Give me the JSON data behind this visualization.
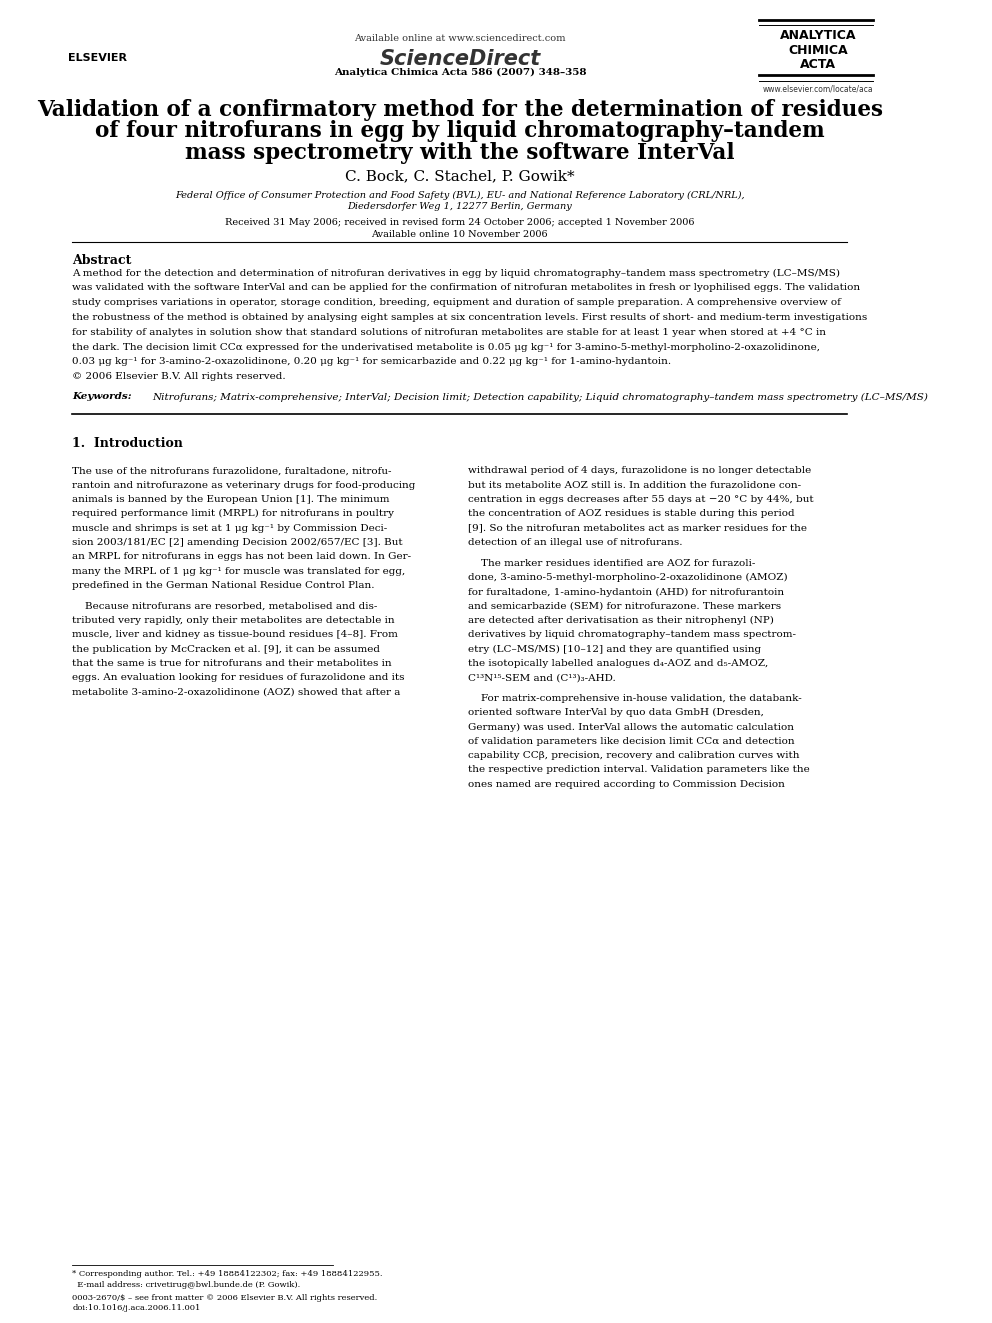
{
  "bg_color": "#ffffff",
  "header": {
    "available_online": "Available online at www.sciencedirect.com",
    "journal_name": "ScienceDirect",
    "journal_sub": "Analytica Chimica Acta 586 (2007) 348–358",
    "publisher_left": "ELSEVIER",
    "journal_right_line1": "ANALYTICA",
    "journal_right_line2": "CHIMICA",
    "journal_right_line3": "ACTA",
    "journal_right_web": "www.elsevier.com/locate/aca"
  },
  "title_line1": "Validation of a confirmatory method for the determination of residues",
  "title_line2": "of four nitrofurans in egg by liquid chromatography–tandem",
  "title_line3": "mass spectrometry with the software InterVal",
  "authors": "C. Bock, C. Stachel, P. Gowik*",
  "affiliation1": "Federal Office of Consumer Protection and Food Safety (BVL), EU- and National Reference Laboratory (CRL/NRL),",
  "affiliation2": "Diedersdorfer Weg 1, 12277 Berlin, Germany",
  "received": "Received 31 May 2006; received in revised form 24 October 2006; accepted 1 November 2006",
  "available": "Available online 10 November 2006",
  "abstract_title": "Abstract",
  "abstract_text": "A method for the detection and determination of nitrofuran derivatives in egg by liquid chromatography–tandem mass spectrometry (LC–MS/MS)\nwas validated with the software InterVal and can be applied for the confirmation of nitrofuran metabolites in fresh or lyophilised eggs. The validation\nstudy comprises variations in operator, storage condition, breeding, equipment and duration of sample preparation. A comprehensive overview of\nthe robustness of the method is obtained by analysing eight samples at six concentration levels. First results of short- and medium-term investigations\nfor stability of analytes in solution show that standard solutions of nitrofuran metabolites are stable for at least 1 year when stored at +4 °C in\nthe dark. The decision limit CCα expressed for the underivatised metabolite is 0.05 μg kg⁻¹ for 3-amino-5-methyl-morpholino-2-oxazolidinone,\n0.03 μg kg⁻¹ for 3-amino-2-oxazolidinone, 0.20 μg kg⁻¹ for semicarbazide and 0.22 μg kg⁻¹ for 1-amino-hydantoin.\n© 2006 Elsevier B.V. All rights reserved.",
  "keywords_label": "Keywords:",
  "keywords_text": "Nitrofurans; Matrix-comprehensive; InterVal; Decision limit; Detection capability; Liquid chromatography–tandem mass spectrometry (LC–MS/MS)",
  "section1_title": "1.  Introduction",
  "section1_col1": "The use of the nitrofurans furazolidone, furaltadone, nitrofu-\nrantoin and nitrofurazone as veterinary drugs for food-producing\nanimals is banned by the European Union [1]. The minimum\nrequired performance limit (MRPL) for nitrofurans in poultry\nmuscle and shrimps is set at 1 μg kg⁻¹ by Commission Deci-\nsion 2003/181/EC [2] amending Decision 2002/657/EC [3]. But\nan MRPL for nitrofurans in eggs has not been laid down. In Ger-\nmany the MRPL of 1 μg kg⁻¹ for muscle was translated for egg,\npredefined in the German National Residue Control Plan.\n\n    Because nitrofurans are resorbed, metabolised and dis-\ntributed very rapidly, only their metabolites are detectable in\nmuscle, liver and kidney as tissue-bound residues [4–8]. From\nthe publication by McCracken et al. [9], it can be assumed\nthat the same is true for nitrofurans and their metabolites in\neggs. An evaluation looking for residues of furazolidone and its\nmetabolite 3-amino-2-oxazolidinone (AOZ) showed that after a",
  "section1_col2": "withdrawal period of 4 days, furazolidone is no longer detectable\nbut its metabolite AOZ still is. In addition the furazolidone con-\ncentration in eggs decreases after 55 days at −20 °C by 44%, but\nthe concentration of AOZ residues is stable during this period\n[9]. So the nitrofuran metabolites act as marker residues for the\ndetection of an illegal use of nitrofurans.\n\n    The marker residues identified are AOZ for furazoli-\ndone, 3-amino-5-methyl-morpholino-2-oxazolidinone (AMOZ)\nfor furaltadone, 1-amino-hydantoin (AHD) for nitrofurantoin\nand semicarbazide (SEM) for nitrofurazone. These markers\nare detected after derivatisation as their nitrophenyl (NP)\nderivatives by liquid chromatography–tandem mass spectrom-\netry (LC–MS/MS) [10–12] and they are quantified using\nthe isotopically labelled analogues d₄-AOZ and d₅-AMOZ,\nC¹³N¹⁵-SEM and (C¹³)₃-AHD.\n\n    For matrix-comprehensive in-house validation, the databank-\noriented software InterVal by quo data GmbH (Dresden,\nGermany) was used. InterVal allows the automatic calculation\nof validation parameters like decision limit CCα and detection\ncapability CCβ, precision, recovery and calibration curves with\nthe respective prediction interval. Validation parameters like the\nones named are required according to Commission Decision",
  "footer_left": "0003-2670/$ – see front matter © 2006 Elsevier B.V. All rights reserved.",
  "footer_doi": "doi:10.1016/j.aca.2006.11.001",
  "footnote": "* Corresponding author. Tel.: +49 18884122302; fax: +49 18884122955.\n  E-mail address: crivetirug@bwl.bunde.de (P. Gowik)."
}
